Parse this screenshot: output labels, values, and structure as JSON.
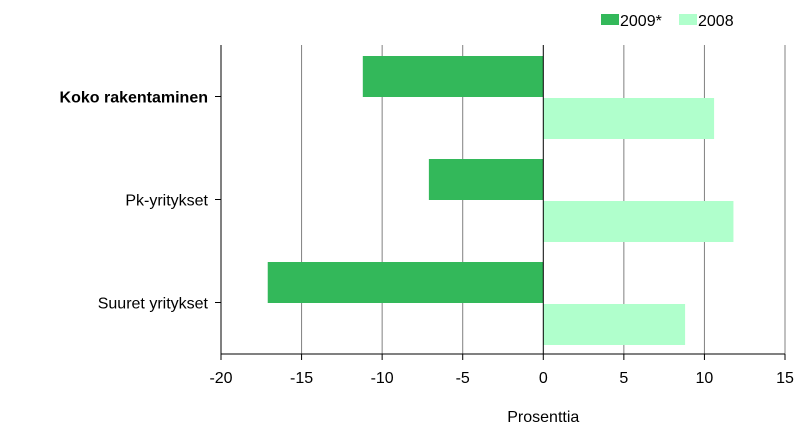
{
  "chart_data": {
    "type": "bar",
    "orientation": "horizontal",
    "categories": [
      "Koko rakentaminen",
      "Pk-yritykset",
      "Suuret yritykset"
    ],
    "category_bold": [
      true,
      false,
      false
    ],
    "series": [
      {
        "name": "2009*",
        "color": "#33b85a",
        "values": [
          -11.2,
          -7.1,
          -17.1
        ]
      },
      {
        "name": "2008",
        "color": "#b0ffcc",
        "values": [
          10.6,
          11.8,
          8.8
        ]
      }
    ],
    "xlabel": "Prosenttia",
    "ylabel": "",
    "xlim": [
      -20,
      15
    ],
    "xticks": [
      -20,
      -15,
      -10,
      -5,
      0,
      5,
      10,
      15
    ],
    "xtick_labels": [
      "-20",
      "-15",
      "-10",
      "-5",
      "0",
      "5",
      "10",
      "15"
    ],
    "grid": "vertical",
    "legend_position": "top-right"
  }
}
